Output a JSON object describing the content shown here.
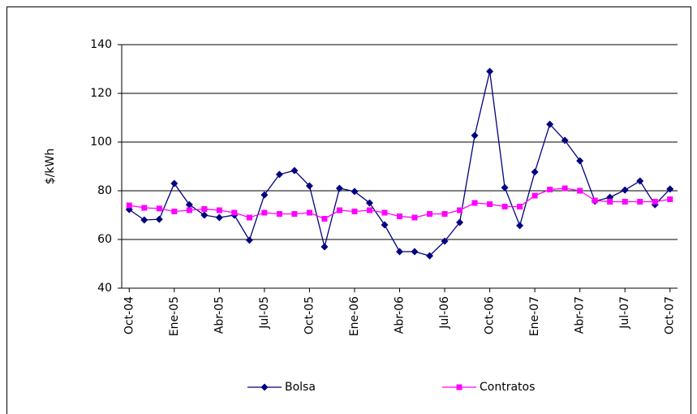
{
  "chart_data": {
    "type": "line",
    "y_label": "$/kWh",
    "categories": [
      "Oct-04",
      null,
      null,
      "Ene-05",
      null,
      null,
      "Abr-05",
      null,
      null,
      "Jul-05",
      null,
      null,
      "Oct-05",
      null,
      null,
      "Ene-06",
      null,
      null,
      "Abr-06",
      null,
      null,
      "Jul-06",
      null,
      null,
      "Oct-06",
      null,
      null,
      "Ene-07",
      null,
      null,
      "Abr-07",
      null,
      null,
      "Jul-07",
      null,
      null,
      "Oct-07"
    ],
    "series": [
      {
        "name": "Bolsa",
        "color": "#000080",
        "marker": "diamond",
        "values": [
          72.3,
          68,
          68.3,
          83,
          74.3,
          70,
          69,
          70,
          59.7,
          78.3,
          86.7,
          88.3,
          82,
          57,
          81,
          79.7,
          75,
          66,
          55,
          55,
          53.3,
          59.3,
          67,
          102.7,
          129,
          81.3,
          65.7,
          87.7,
          107.3,
          100.7,
          92.3,
          75.7,
          77.3,
          80.3,
          84,
          74.3,
          80.7
        ]
      },
      {
        "name": "Contratos",
        "color": "#ff00ff",
        "marker": "square",
        "values": [
          74,
          73,
          72.7,
          71.5,
          72,
          72.5,
          72,
          71,
          69,
          71,
          70.5,
          70.5,
          71,
          68.5,
          72,
          71.5,
          72,
          71,
          69.5,
          69,
          70.5,
          70.5,
          72,
          75,
          74.5,
          73.5,
          73.5,
          78,
          80.5,
          81,
          80,
          76,
          75.5,
          75.5,
          75.5,
          75.5,
          76.5
        ]
      }
    ],
    "ylim": [
      40,
      140
    ],
    "yticks": [
      40,
      60,
      80,
      100,
      120,
      140
    ],
    "grid": true,
    "legend": "bottom"
  }
}
